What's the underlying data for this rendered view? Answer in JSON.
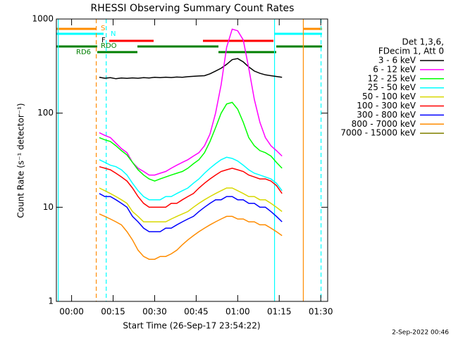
{
  "chart_data": {
    "type": "line",
    "title": "RHESSI Observing Summary Count Rates",
    "xlabel": "Start Time (26-Sep-17 23:54:22)",
    "ylabel": "Count Rate (s⁻¹ detector⁻¹)",
    "footer": "2-Sep-2022 00:46",
    "legend_header": [
      "Det 1,3,6,",
      "FDecim 1, Att 0"
    ],
    "flag_labels": [
      "S",
      "N",
      "F",
      "RDO",
      "RD6"
    ],
    "log_y": true,
    "ylim": [
      1,
      1000
    ],
    "yticks": [
      1,
      10,
      100,
      1000
    ],
    "xlim": [
      -5.5,
      92.5
    ],
    "xticks": [
      {
        "value": 0,
        "label": "00:00"
      },
      {
        "value": 15,
        "label": "00:15"
      },
      {
        "value": 30,
        "label": "00:30"
      },
      {
        "value": 45,
        "label": "00:45"
      },
      {
        "value": 60,
        "label": "01:00"
      },
      {
        "value": 75,
        "label": "01:15"
      },
      {
        "value": 90,
        "label": "01:30"
      }
    ],
    "vlines": [
      {
        "x": -4.8,
        "color": "#00ffff",
        "dashed": false
      },
      {
        "x": 8.9,
        "color": "#ff8c00",
        "dashed": true
      },
      {
        "x": 12.5,
        "color": "#00ffff",
        "dashed": true
      },
      {
        "x": 73.3,
        "color": "#00ffff",
        "dashed": false
      },
      {
        "x": 83.7,
        "color": "#ff8c00",
        "dashed": false
      },
      {
        "x": 90.1,
        "color": "#00ffff",
        "dashed": true
      }
    ],
    "x": [
      10,
      12,
      14,
      16,
      18,
      20,
      22,
      24,
      26,
      28,
      30,
      32,
      34,
      36,
      38,
      40,
      42,
      44,
      46,
      48,
      50,
      52,
      54,
      56,
      58,
      60,
      62,
      64,
      66,
      68,
      70,
      72,
      74,
      76
    ],
    "series": [
      {
        "name": "3 - 6 keV",
        "color": "#000000",
        "values": [
          240,
          235,
          238,
          232,
          236,
          234,
          237,
          235,
          238,
          236,
          240,
          238,
          241,
          239,
          242,
          240,
          244,
          246,
          248,
          250,
          262,
          280,
          300,
          330,
          370,
          380,
          350,
          310,
          280,
          265,
          255,
          250,
          245,
          240
        ]
      },
      {
        "name": "6 - 12 keV",
        "color": "#ff00ff",
        "values": [
          62,
          58,
          55,
          48,
          42,
          38,
          30,
          26,
          24,
          22,
          22,
          23,
          24,
          26,
          28,
          30,
          32,
          35,
          38,
          45,
          60,
          100,
          200,
          500,
          780,
          750,
          600,
          300,
          140,
          80,
          55,
          45,
          40,
          35
        ]
      },
      {
        "name": "12 - 25 keV",
        "color": "#00ff00",
        "values": [
          55,
          52,
          50,
          45,
          40,
          36,
          30,
          25,
          22,
          20,
          19,
          20,
          21,
          22,
          23,
          24,
          26,
          29,
          32,
          38,
          50,
          70,
          100,
          125,
          130,
          110,
          80,
          55,
          45,
          40,
          38,
          35,
          30,
          26
        ]
      },
      {
        "name": "25 - 50 keV",
        "color": "#00ffff",
        "values": [
          32,
          30,
          28,
          27,
          25,
          22,
          18,
          15,
          13,
          12,
          12,
          12,
          13,
          13,
          14,
          15,
          16,
          18,
          20,
          23,
          26,
          29,
          32,
          34,
          33,
          31,
          28,
          25,
          23,
          22,
          21,
          20,
          18,
          15
        ]
      },
      {
        "name": "50 - 100 keV",
        "color": "#d8d800",
        "values": [
          16,
          15,
          14,
          13,
          12,
          11,
          9,
          8,
          7,
          7,
          7,
          7,
          7,
          7.5,
          8,
          8.5,
          9,
          10,
          11,
          12,
          13,
          14,
          15,
          16,
          16,
          15,
          14,
          13,
          13,
          12,
          12,
          11,
          10,
          9
        ]
      },
      {
        "name": "100 - 300 keV",
        "color": "#ff0000",
        "values": [
          27,
          26,
          25,
          23,
          21,
          19,
          16,
          13,
          11,
          10,
          10,
          10,
          10,
          11,
          11,
          12,
          13,
          14,
          16,
          18,
          20,
          22,
          24,
          25,
          26,
          25,
          24,
          22,
          21,
          20,
          20,
          19,
          17,
          14
        ]
      },
      {
        "name": "300 - 800 keV",
        "color": "#0000ff",
        "values": [
          14,
          13,
          13,
          12,
          11,
          10,
          8,
          7,
          6,
          5.5,
          5.5,
          5.5,
          6,
          6,
          6.5,
          7,
          7.5,
          8,
          9,
          10,
          11,
          12,
          12,
          13,
          13,
          12,
          12,
          11,
          11,
          10,
          10,
          9,
          8,
          7
        ]
      },
      {
        "name": "800 - 7000 keV",
        "color": "#ff8c00",
        "values": [
          8.5,
          8,
          7.5,
          7,
          6.5,
          5.5,
          4.5,
          3.5,
          3,
          2.8,
          2.8,
          3,
          3,
          3.2,
          3.5,
          4,
          4.5,
          5,
          5.5,
          6,
          6.5,
          7,
          7.5,
          8,
          8,
          7.5,
          7.5,
          7,
          7,
          6.5,
          6.5,
          6,
          5.5,
          5
        ]
      },
      {
        "name": "7000 - 15000 keV",
        "color": "#808000"
      }
    ]
  }
}
